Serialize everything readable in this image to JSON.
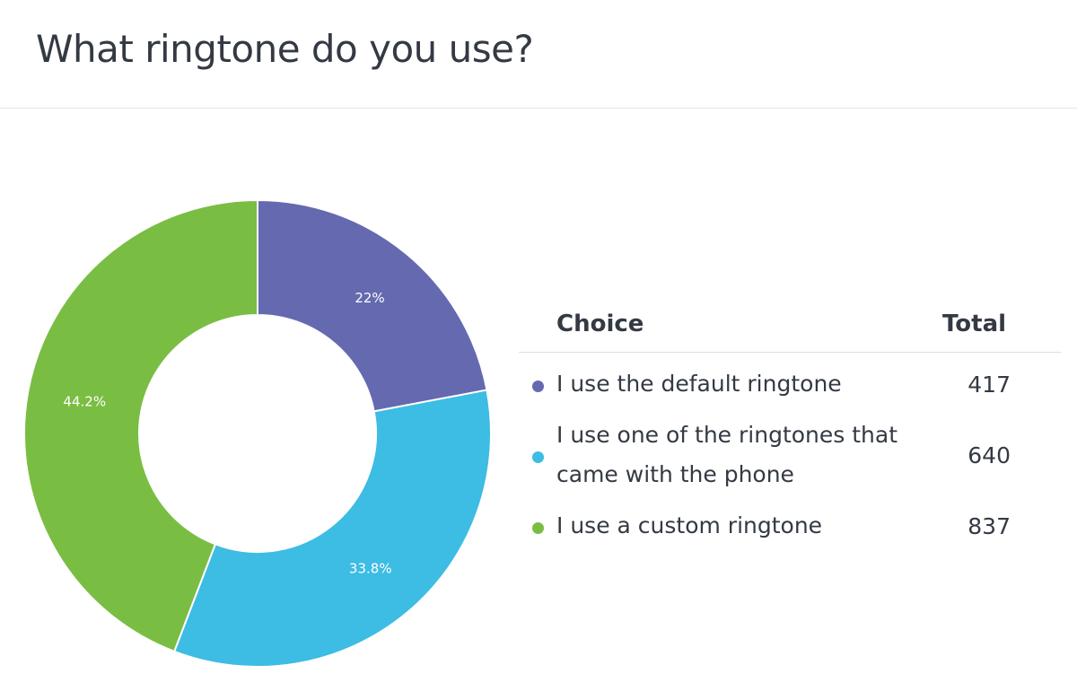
{
  "header": {
    "title": "What ringtone do you use?"
  },
  "table": {
    "choice_header": "Choice",
    "total_header": "Total"
  },
  "chart_data": {
    "type": "pie",
    "donut": true,
    "categories": [
      "I use the default ringtone",
      "I use one of the ringtones that came with the phone",
      "I use a custom ringtone"
    ],
    "values": [
      417,
      640,
      837
    ],
    "percent_labels": [
      "22%",
      "33.8%",
      "44.2%"
    ],
    "colors": [
      "#6569b0",
      "#3dbce4",
      "#7abd43"
    ],
    "legend_position": "right"
  }
}
